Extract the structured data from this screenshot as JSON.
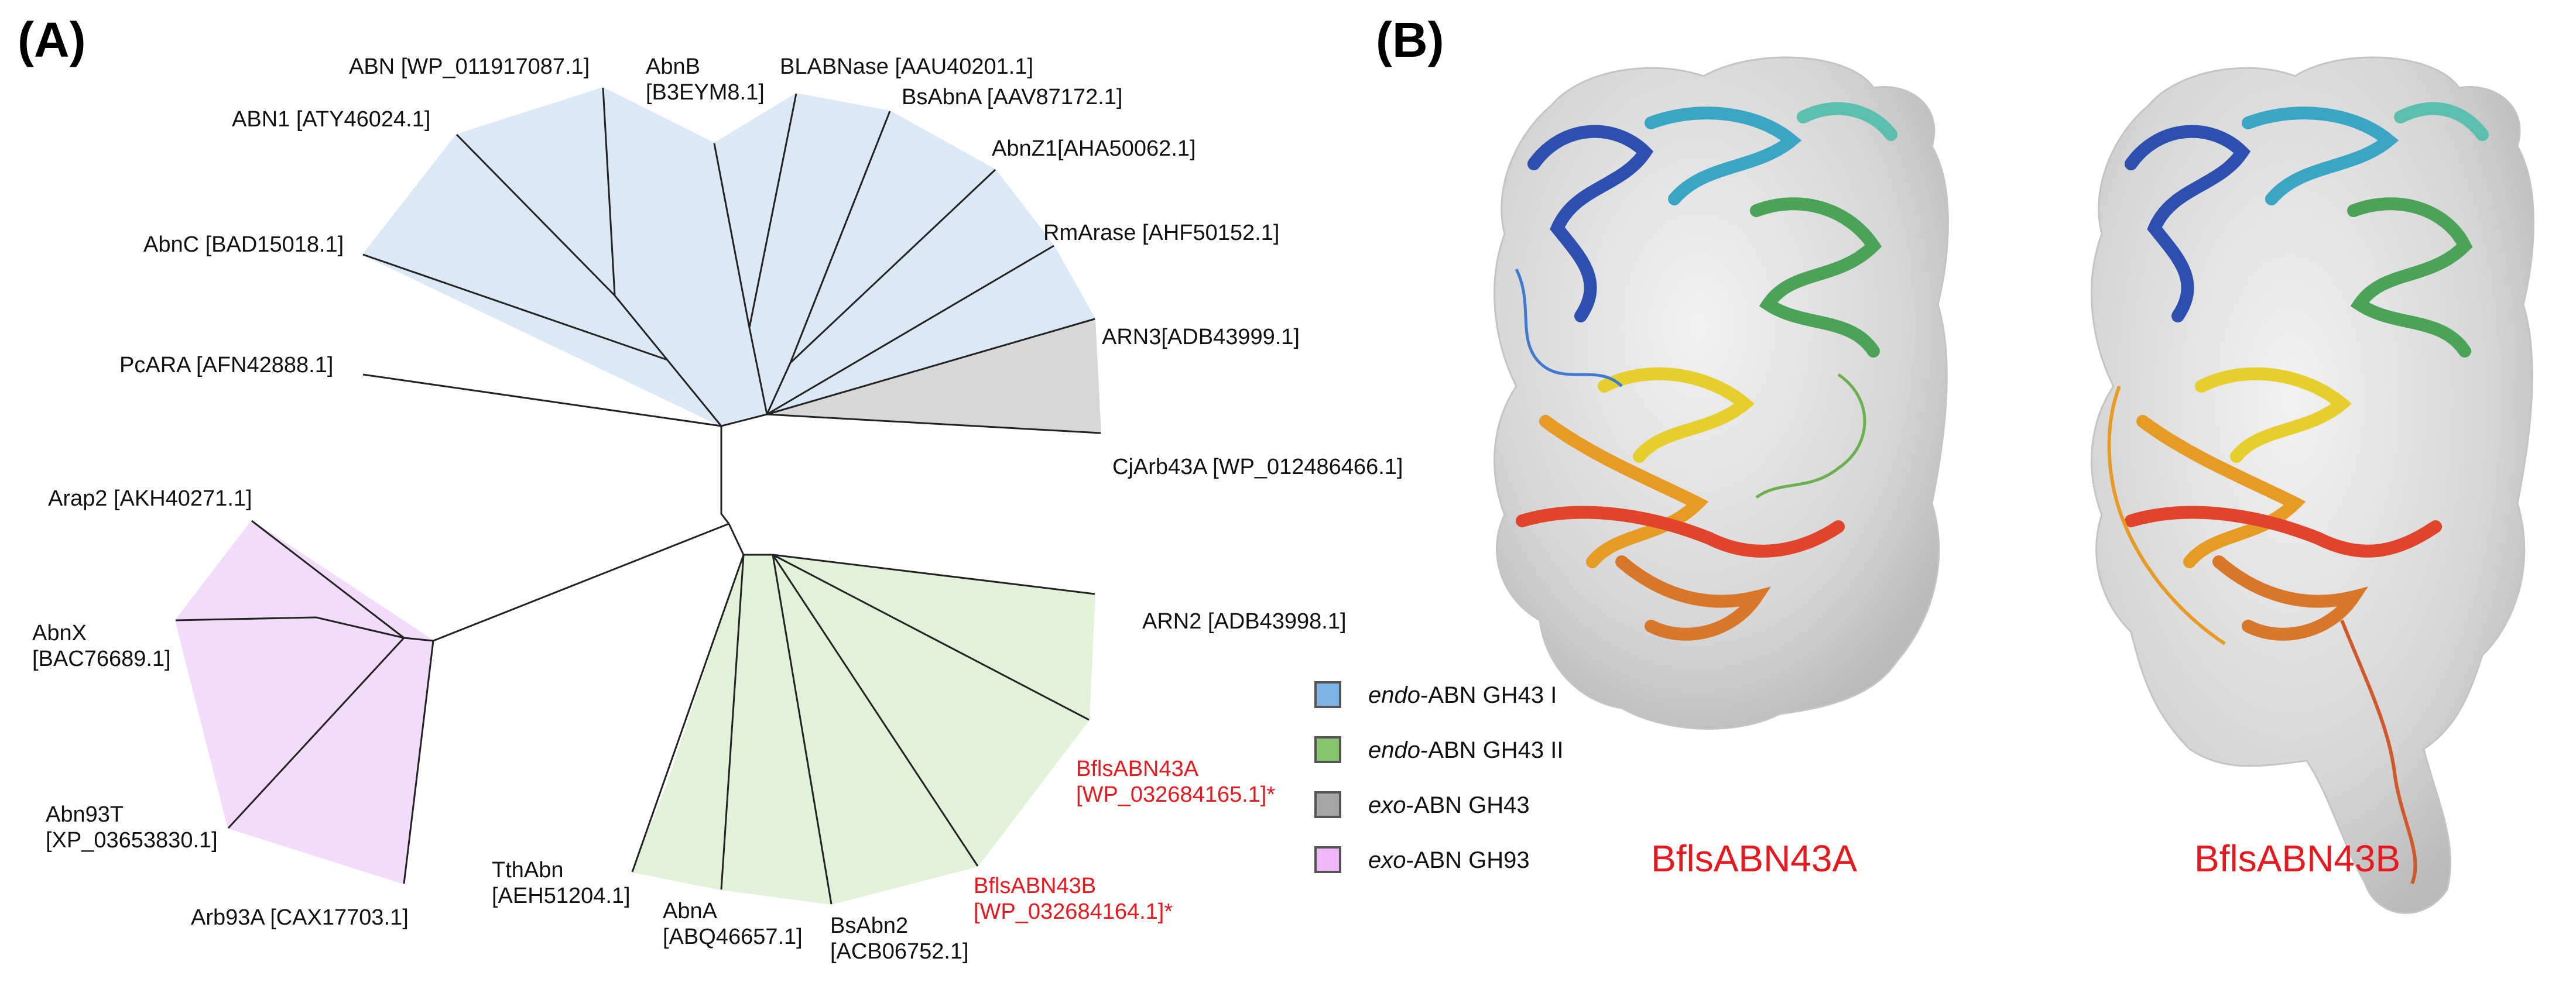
{
  "panel_a_label": "(A)",
  "panel_b_label": "(B)",
  "leaves": {
    "abn": [
      "ABN [WP_011917087.1]"
    ],
    "abnb": [
      "AbnB",
      "[B3EYM8.1]"
    ],
    "blabnase": [
      "BLABNase [AAU40201.1]"
    ],
    "bsabna": [
      "BsAbnA [AAV87172.1]"
    ],
    "abn1": [
      "ABN1 [ATY46024.1]"
    ],
    "abnz1": [
      "AbnZ1[AHA50062.1]"
    ],
    "rmarase": [
      "RmArase [AHF50152.1]"
    ],
    "abnc": [
      "AbnC [BAD15018.1]"
    ],
    "arn3": [
      "ARN3[ADB43999.1]"
    ],
    "pcara": [
      "PcARA [AFN42888.1]"
    ],
    "cjarb43a": [
      "CjArb43A [WP_012486466.1]"
    ],
    "arap2": [
      "Arap2 [AKH40271.1]"
    ],
    "arn2": [
      "ARN2 [ADB43998.1]"
    ],
    "abnx": [
      "AbnX",
      "[BAC76689.1]"
    ],
    "bflsabn43a": [
      "BflsABN43A",
      "[WP_032684165.1]*"
    ],
    "abn93t": [
      "Abn93T",
      "[XP_03653830.1]"
    ],
    "tthabn": [
      "TthAbn",
      "[AEH51204.1]"
    ],
    "bflsabn43b": [
      "BflsABN43B",
      "[WP_032684164.1]*"
    ],
    "abna": [
      "AbnA",
      "[ABQ46657.1]"
    ],
    "bsabn2": [
      "BsAbn2",
      "[ACB06752.1]"
    ],
    "arb93a": [
      "Arb93A [CAX17703.1]"
    ]
  },
  "legend": [
    {
      "prefix": "endo",
      "suffix": "-ABN GH43 I",
      "color": "#7fb4e6"
    },
    {
      "prefix": "endo",
      "suffix": "-ABN GH43 II",
      "color": "#86c66f"
    },
    {
      "prefix": "exo",
      "suffix": "-ABN GH43",
      "color": "#a6a6a6"
    },
    {
      "prefix": "exo",
      "suffix": "-ABN GH93",
      "color": "#eeb7f5"
    }
  ],
  "clade_colors": {
    "gh43_i": "#dbe9f7",
    "gh43_ii": "#e2f2d8",
    "gh43_exo": "#d7d7d7",
    "gh93": "#f2dbfb"
  },
  "structure_labels": {
    "left": "BflsABN43A",
    "right": "BflsABN43B"
  },
  "highlight_color": "#e8191e"
}
